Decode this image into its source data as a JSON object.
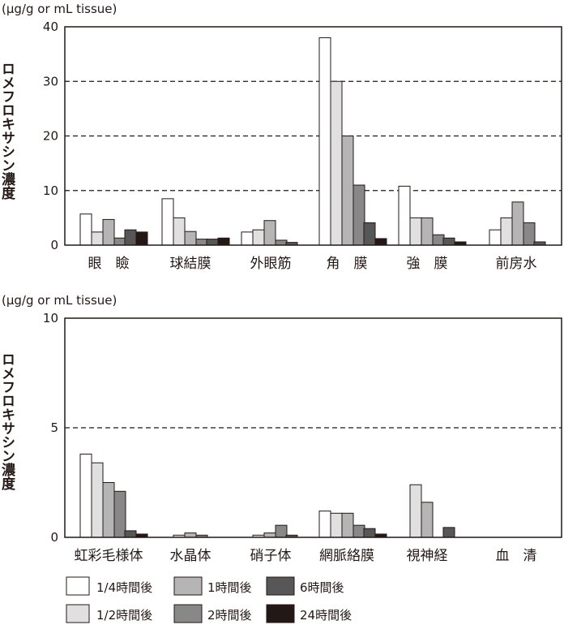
{
  "chart_data": [
    {
      "type": "bar",
      "unit_label": "(µg/g or mL tissue)",
      "ylabel": "ロメフロキサシン濃度",
      "ylim": [
        0,
        40
      ],
      "yticks": [
        0,
        10,
        20,
        30,
        40
      ],
      "dashed_gridlines": [
        10,
        20,
        30
      ],
      "categories": [
        "眼　瞼",
        "球結膜",
        "外眼筋",
        "角　膜",
        "強　膜",
        "前房水"
      ],
      "series": [
        {
          "name": "1/4時間後",
          "values": [
            5.7,
            8.5,
            2.4,
            38.0,
            10.8,
            2.8
          ]
        },
        {
          "name": "1/2時間後",
          "values": [
            2.4,
            5.0,
            2.8,
            30.0,
            5.0,
            5.0
          ]
        },
        {
          "name": "1時間後",
          "values": [
            4.7,
            2.5,
            4.5,
            20.0,
            5.0,
            7.9
          ]
        },
        {
          "name": "2時間後",
          "values": [
            1.3,
            1.1,
            0.9,
            11.0,
            1.9,
            4.1
          ]
        },
        {
          "name": "6時間後",
          "values": [
            2.8,
            1.1,
            0.5,
            4.1,
            1.3,
            0.6
          ]
        },
        {
          "name": "24時間後",
          "values": [
            2.4,
            1.3,
            0.0,
            1.2,
            0.6,
            0.0
          ]
        }
      ]
    },
    {
      "type": "bar",
      "unit_label": "(µg/g or mL tissue)",
      "ylabel": "ロメフロキサシン濃度",
      "ylim": [
        0,
        10
      ],
      "yticks": [
        0,
        5,
        10
      ],
      "dashed_gridlines": [
        5
      ],
      "categories": [
        "虹彩毛様体",
        "水晶体",
        "硝子体",
        "網脈絡膜",
        "視神経",
        "血　清"
      ],
      "series": [
        {
          "name": "1/4時間後",
          "values": [
            3.8,
            0.0,
            0.0,
            1.2,
            0.0,
            0.0
          ]
        },
        {
          "name": "1/2時間後",
          "values": [
            3.4,
            0.1,
            0.1,
            1.1,
            2.4,
            0.0
          ]
        },
        {
          "name": "1時間後",
          "values": [
            2.5,
            0.2,
            0.2,
            1.1,
            1.6,
            0.0
          ]
        },
        {
          "name": "2時間後",
          "values": [
            2.1,
            0.1,
            0.55,
            0.55,
            0.0,
            0.0
          ]
        },
        {
          "name": "6時間後",
          "values": [
            0.3,
            0.0,
            0.1,
            0.4,
            0.45,
            0.0
          ]
        },
        {
          "name": "24時間後",
          "values": [
            0.15,
            0.0,
            0.0,
            0.15,
            0.0,
            0.0
          ]
        }
      ]
    }
  ],
  "legend": {
    "entries": [
      {
        "label": "1/4時間後",
        "color": "#ffffff"
      },
      {
        "label": "1/2時間後",
        "color": "#e0e0e0"
      },
      {
        "label": "1時間後",
        "color": "#b5b5b5"
      },
      {
        "label": "2時間後",
        "color": "#888888"
      },
      {
        "label": "6時間後",
        "color": "#575757"
      },
      {
        "label": "24時間後",
        "color": "#231815"
      }
    ]
  }
}
